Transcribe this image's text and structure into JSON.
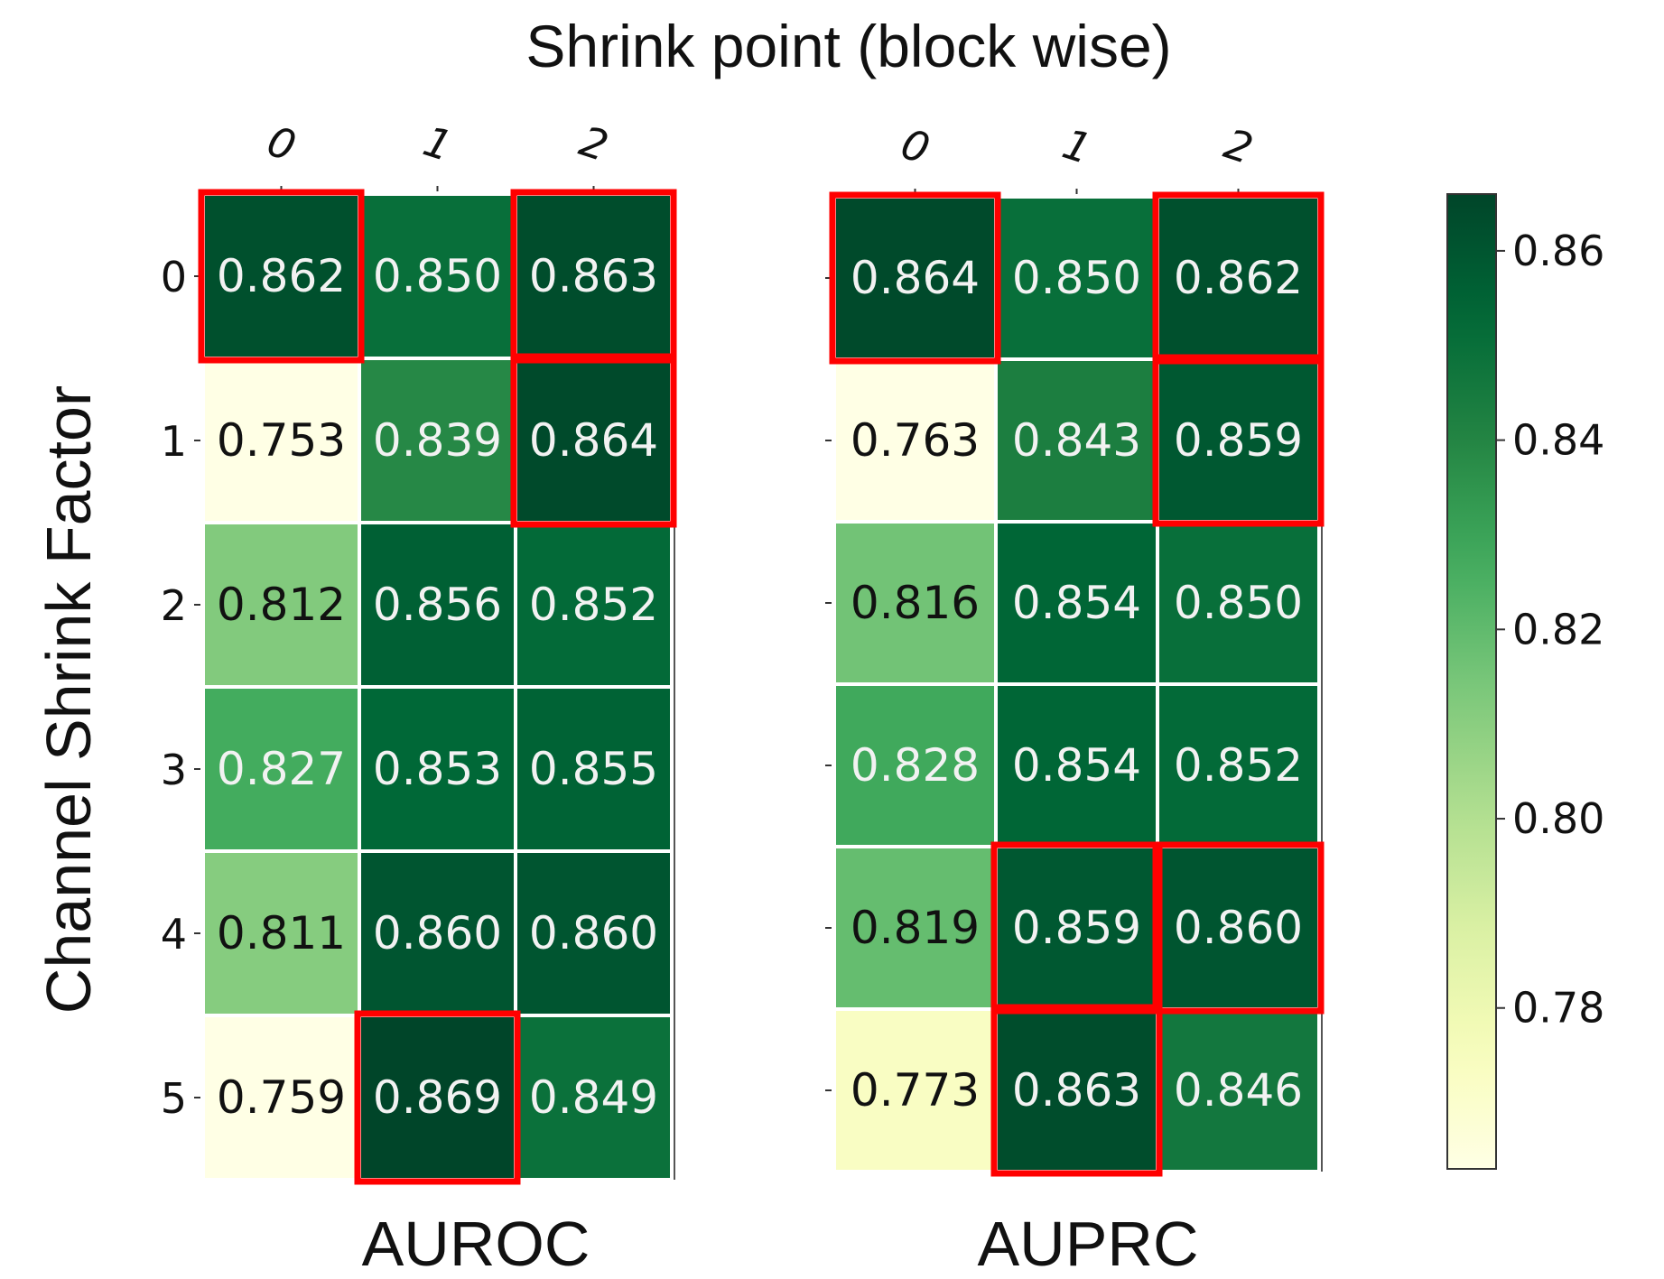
{
  "chart_data": [
    {
      "type": "heatmap",
      "title": "AUROC",
      "x_categories": [
        "0",
        "1",
        "2"
      ],
      "y_categories": [
        "0",
        "1",
        "2",
        "3",
        "4",
        "5"
      ],
      "values": [
        [
          0.862,
          0.85,
          0.863
        ],
        [
          0.753,
          0.839,
          0.864
        ],
        [
          0.812,
          0.856,
          0.852
        ],
        [
          0.827,
          0.853,
          0.855
        ],
        [
          0.811,
          0.86,
          0.86
        ],
        [
          0.759,
          0.869,
          0.849
        ]
      ],
      "value_labels": [
        [
          "0.862",
          "0.850",
          "0.863"
        ],
        [
          "0.753",
          "0.839",
          "0.864"
        ],
        [
          "0.812",
          "0.856",
          "0.852"
        ],
        [
          "0.827",
          "0.853",
          "0.855"
        ],
        [
          "0.811",
          "0.860",
          "0.860"
        ],
        [
          "0.759",
          "0.869",
          "0.849"
        ]
      ],
      "highlighted_cells": [
        [
          0,
          0
        ],
        [
          0,
          2
        ],
        [
          1,
          2
        ],
        [
          5,
          1
        ]
      ]
    },
    {
      "type": "heatmap",
      "title": "AUPRC",
      "x_categories": [
        "0",
        "1",
        "2"
      ],
      "y_categories": [
        "0",
        "1",
        "2",
        "3",
        "4",
        "5"
      ],
      "values": [
        [
          0.864,
          0.85,
          0.862
        ],
        [
          0.763,
          0.843,
          0.859
        ],
        [
          0.816,
          0.854,
          0.85
        ],
        [
          0.828,
          0.854,
          0.852
        ],
        [
          0.819,
          0.859,
          0.86
        ],
        [
          0.773,
          0.863,
          0.846
        ]
      ],
      "value_labels": [
        [
          "0.864",
          "0.850",
          "0.862"
        ],
        [
          "0.763",
          "0.843",
          "0.859"
        ],
        [
          "0.816",
          "0.854",
          "0.850"
        ],
        [
          "0.828",
          "0.854",
          "0.852"
        ],
        [
          "0.819",
          "0.859",
          "0.860"
        ],
        [
          "0.773",
          "0.863",
          "0.846"
        ]
      ],
      "highlighted_cells": [
        [
          0,
          0
        ],
        [
          0,
          2
        ],
        [
          1,
          2
        ],
        [
          4,
          1
        ],
        [
          4,
          2
        ],
        [
          5,
          1
        ]
      ]
    }
  ],
  "shared": {
    "xlabel": "Shrink point (block wise)",
    "ylabel": "Channel Shrink Factor",
    "colormap": "YlGn",
    "colorbar": {
      "range": [
        0.763,
        0.866
      ],
      "ticks": [
        0.78,
        0.8,
        0.82,
        0.84,
        0.86
      ],
      "tick_labels": [
        "0.78",
        "0.80",
        "0.82",
        "0.84",
        "0.86"
      ]
    },
    "highlight_color": "#ff0000",
    "cell_separator_color": "#ffffff"
  }
}
